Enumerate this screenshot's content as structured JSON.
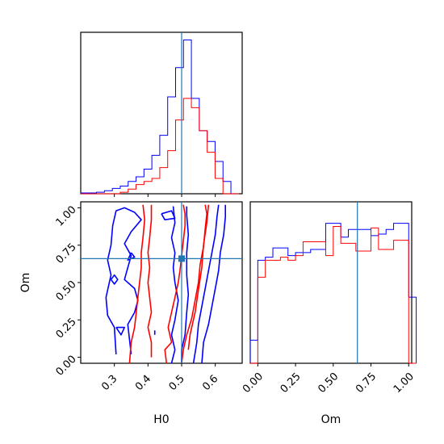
{
  "chart_data": {
    "type": "corner",
    "parameters": [
      "H0",
      "Om"
    ],
    "truth": {
      "H0": 0.5,
      "Om": 0.66,
      "color": "#1f77b4"
    },
    "series_colors": [
      "#0000ff",
      "#ff0000"
    ],
    "panels": [
      {
        "id": "hist-h0",
        "type": "histogram",
        "xlim": [
          0.2,
          0.68
        ],
        "bins": [
          0.2,
          0.2235,
          0.247,
          0.2705,
          0.294,
          0.3175,
          0.341,
          0.3645,
          0.388,
          0.4115,
          0.435,
          0.4585,
          0.482,
          0.5055,
          0.529,
          0.5525,
          0.576,
          0.5995,
          0.623,
          0.6465
        ],
        "ylim": [
          0,
          1.0
        ],
        "series": [
          {
            "color": "#0000ff",
            "counts": [
              0.005,
              0.005,
              0.01,
              0.02,
              0.035,
              0.05,
              0.08,
              0.11,
              0.16,
              0.25,
              0.38,
              0.63,
              0.82,
              1.0,
              0.62,
              0.41,
              0.34,
              0.21,
              0.08,
              0.0
            ]
          },
          {
            "color": "#ff0000",
            "counts": [
              0,
              0,
              0,
              0,
              0,
              0.01,
              0.03,
              0.06,
              0.08,
              0.1,
              0.17,
              0.28,
              0.48,
              0.62,
              0.56,
              0.41,
              0.27,
              0.1,
              0.0,
              0
            ]
          }
        ]
      },
      {
        "id": "hist-om",
        "type": "histogram",
        "xlim": [
          -0.05,
          1.02
        ],
        "bins": [
          -0.05,
          0.0,
          0.05,
          0.1,
          0.15,
          0.2,
          0.25,
          0.3,
          0.35,
          0.4,
          0.45,
          0.5,
          0.55,
          0.6,
          0.65,
          0.7,
          0.75,
          0.8,
          0.85,
          0.9,
          0.95,
          1.0
        ],
        "ylim": [
          0,
          1.0
        ],
        "series": [
          {
            "color": "#0000ff",
            "counts": [
              0.15,
              0.67,
              0.69,
              0.75,
              0.75,
              0.7,
              0.72,
              0.72,
              0.74,
              0.74,
              0.91,
              0.91,
              0.82,
              0.87,
              0.87,
              0.87,
              0.83,
              0.84,
              0.87,
              0.91,
              0.91,
              0.43
            ]
          },
          {
            "color": "#ff0000",
            "counts": [
              0,
              0.56,
              0.67,
              0.67,
              0.69,
              0.67,
              0.7,
              0.79,
              0.79,
              0.79,
              0.7,
              0.89,
              0.78,
              0.78,
              0.73,
              0.73,
              0.88,
              0.74,
              0.74,
              0.8,
              0.8,
              0.0
            ]
          }
        ]
      },
      {
        "id": "contour-h0-om",
        "type": "contour",
        "xlim": [
          0.2,
          0.68
        ],
        "ylim": [
          -0.04,
          1.04
        ],
        "series": [
          {
            "color": "#0000ff",
            "paths": [
              [
                [
                  0.5,
                  -0.04
                ],
                [
                  0.5,
                  0.05
                ],
                [
                  0.51,
                  0.15
                ],
                [
                  0.515,
                  0.3
                ],
                [
                  0.52,
                  0.42
                ],
                [
                  0.515,
                  0.55
                ],
                [
                  0.515,
                  0.7
                ],
                [
                  0.52,
                  0.82
                ],
                [
                  0.515,
                  0.95
                ],
                [
                  0.515,
                  1.01
                ]
              ],
              [
                [
                  0.535,
                  -0.04
                ],
                [
                  0.545,
                  0.1
                ],
                [
                  0.55,
                  0.22
                ],
                [
                  0.56,
                  0.34
                ],
                [
                  0.57,
                  0.46
                ],
                [
                  0.58,
                  0.58
                ],
                [
                  0.59,
                  0.7
                ],
                [
                  0.6,
                  0.82
                ],
                [
                  0.605,
                  0.94
                ],
                [
                  0.61,
                  1.02
                ]
              ],
              [
                [
                  0.47,
                  -0.04
                ],
                [
                  0.48,
                  0.05
                ],
                [
                  0.47,
                  0.15
                ],
                [
                  0.48,
                  0.25
                ],
                [
                  0.49,
                  0.38
                ],
                [
                  0.48,
                  0.5
                ],
                [
                  0.475,
                  0.6
                ],
                [
                  0.48,
                  0.7
                ],
                [
                  0.47,
                  0.8
                ],
                [
                  0.48,
                  0.9
                ],
                [
                  0.475,
                  1.01
                ]
              ],
              [
                [
                  0.56,
                  -0.04
                ],
                [
                  0.565,
                  0.1
                ],
                [
                  0.58,
                  0.22
                ],
                [
                  0.59,
                  0.34
                ],
                [
                  0.6,
                  0.46
                ],
                [
                  0.61,
                  0.58
                ],
                [
                  0.615,
                  0.7
                ],
                [
                  0.625,
                  0.82
                ],
                [
                  0.63,
                  0.94
                ],
                [
                  0.63,
                  1.02
                ]
              ],
              [
                [
                  0.305,
                  0.02
                ],
                [
                  0.3,
                  0.2
                ],
                [
                  0.28,
                  0.28
                ],
                [
                  0.275,
                  0.4
                ],
                [
                  0.29,
                  0.55
                ],
                [
                  0.28,
                  0.65
                ],
                [
                  0.29,
                  0.75
                ],
                [
                  0.295,
                  0.88
                ],
                [
                  0.305,
                  0.98
                ],
                [
                  0.33,
                  1.0
                ],
                [
                  0.36,
                  0.97
                ],
                [
                  0.38,
                  0.92
                ],
                [
                  0.35,
                  0.84
                ],
                [
                  0.33,
                  0.76
                ],
                [
                  0.35,
                  0.68
                ],
                [
                  0.34,
                  0.6
                ],
                [
                  0.33,
                  0.52
                ],
                [
                  0.36,
                  0.46
                ],
                [
                  0.37,
                  0.38
                ],
                [
                  0.36,
                  0.3
                ],
                [
                  0.34,
                  0.22
                ],
                [
                  0.345,
                  0.12
                ],
                [
                  0.35,
                  0.02
                ]
              ],
              [
                [
                  0.305,
                  0.2
                ],
                [
                  0.32,
                  0.15
                ],
                [
                  0.33,
                  0.2
                ],
                [
                  0.305,
                  0.2
                ]
              ],
              [
                [
                  0.29,
                  0.52
                ],
                [
                  0.3,
                  0.55
                ],
                [
                  0.31,
                  0.52
                ],
                [
                  0.3,
                  0.49
                ],
                [
                  0.29,
                  0.52
                ]
              ],
              [
                [
                  0.44,
                  0.96
                ],
                [
                  0.47,
                  0.98
                ],
                [
                  0.48,
                  0.93
                ],
                [
                  0.45,
                  0.92
                ],
                [
                  0.44,
                  0.96
                ]
              ],
              [
                [
                  0.35,
                  0.7
                ],
                [
                  0.36,
                  0.67
                ],
                [
                  0.34,
                  0.65
                ],
                [
                  0.35,
                  0.7
                ]
              ],
              [
                [
                  0.42,
                  0.15
                ],
                [
                  0.42,
                  0.18
                ]
              ]
            ]
          },
          {
            "color": "#ff0000",
            "paths": [
              [
                [
                  0.455,
                  -0.04
                ],
                [
                  0.45,
                  0.05
                ],
                [
                  0.47,
                  0.1
                ],
                [
                  0.46,
                  0.2
                ],
                [
                  0.47,
                  0.3
                ],
                [
                  0.48,
                  0.4
                ],
                [
                  0.49,
                  0.5
                ],
                [
                  0.495,
                  0.58
                ],
                [
                  0.5,
                  0.68
                ],
                [
                  0.505,
                  0.78
                ],
                [
                  0.51,
                  0.88
                ],
                [
                  0.51,
                  0.96
                ],
                [
                  0.505,
                  1.02
                ]
              ],
              [
                [
                  0.5,
                  -0.04
                ],
                [
                  0.505,
                  0.05
                ],
                [
                  0.515,
                  0.15
                ],
                [
                  0.53,
                  0.26
                ],
                [
                  0.54,
                  0.38
                ],
                [
                  0.55,
                  0.5
                ],
                [
                  0.555,
                  0.62
                ],
                [
                  0.565,
                  0.74
                ],
                [
                  0.57,
                  0.86
                ],
                [
                  0.575,
                  0.96
                ],
                [
                  0.57,
                  1.02
                ]
              ],
              [
                [
                  0.345,
                  -0.04
                ],
                [
                  0.35,
                  0.1
                ],
                [
                  0.36,
                  0.2
                ],
                [
                  0.365,
                  0.3
                ],
                [
                  0.37,
                  0.4
                ],
                [
                  0.375,
                  0.5
                ],
                [
                  0.38,
                  0.6
                ],
                [
                  0.38,
                  0.7
                ],
                [
                  0.385,
                  0.8
                ],
                [
                  0.39,
                  0.92
                ],
                [
                  0.385,
                  1.02
                ]
              ],
              [
                [
                  0.41,
                  0.0
                ],
                [
                  0.41,
                  0.1
                ],
                [
                  0.4,
                  0.2
                ],
                [
                  0.41,
                  0.3
                ],
                [
                  0.405,
                  0.4
                ],
                [
                  0.4,
                  0.5
                ],
                [
                  0.405,
                  0.6
                ],
                [
                  0.4,
                  0.7
                ],
                [
                  0.405,
                  0.8
                ],
                [
                  0.41,
                  0.92
                ],
                [
                  0.41,
                  1.02
                ]
              ],
              [
                [
                  0.52,
                  0.05
                ],
                [
                  0.525,
                  0.15
                ],
                [
                  0.54,
                  0.3
                ],
                [
                  0.55,
                  0.45
                ],
                [
                  0.56,
                  0.6
                ],
                [
                  0.565,
                  0.75
                ],
                [
                  0.575,
                  0.9
                ],
                [
                  0.58,
                  1.02
                ]
              ]
            ]
          }
        ]
      }
    ],
    "x_ticks": {
      "H0": [
        0.3,
        0.4,
        0.5,
        0.6
      ],
      "Om": [
        0.0,
        0.25,
        0.5,
        0.75,
        1.0
      ]
    },
    "y_ticks": {
      "Om": [
        0.0,
        0.25,
        0.5,
        0.75,
        1.0
      ]
    },
    "tick_labels": {
      "H0": [
        "0.3",
        "0.4",
        "0.5",
        "0.6"
      ],
      "Om_x": [
        "0.00",
        "0.25",
        "0.50",
        "0.75",
        "1.00"
      ],
      "Om_y": [
        "0.00",
        "0.25",
        "0.50",
        "0.75",
        "1.00"
      ]
    },
    "axis_labels": {
      "x_left": "H0",
      "x_right": "Om",
      "y_bottom": "Om"
    }
  }
}
